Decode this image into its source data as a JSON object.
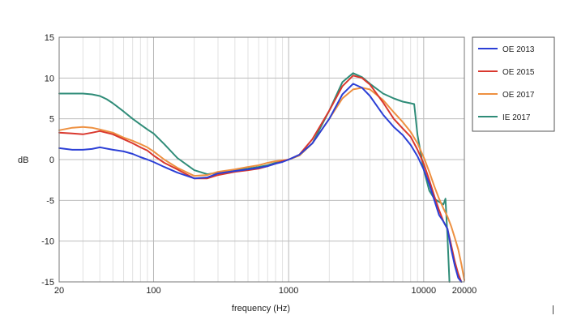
{
  "chart_data": {
    "type": "line",
    "title": "",
    "xlabel": "frequency (Hz)",
    "ylabel": "dB",
    "x_scale": "log",
    "xlim": [
      20,
      20000
    ],
    "ylim": [
      -15,
      15
    ],
    "x_ticks": [
      20,
      100,
      1000,
      10000,
      20000
    ],
    "x_tick_labels": [
      "20",
      "100",
      "1000",
      "10000",
      "20000"
    ],
    "y_ticks": [
      15,
      10,
      5,
      0,
      -5,
      -10,
      -15
    ],
    "y_tick_labels": [
      "15",
      "10",
      "5",
      "0",
      "-5",
      "-10",
      "-15"
    ],
    "grid": true,
    "legend_position": "top-right",
    "colors": {
      "OE 2013": "#2b3fd6",
      "OE 2015": "#d9382e",
      "OE 2017": "#ee9040",
      "IE 2017": "#2f8c78"
    },
    "series": [
      {
        "name": "OE 2013",
        "x": [
          20,
          25,
          30,
          35,
          40,
          50,
          60,
          70,
          80,
          90,
          100,
          120,
          150,
          200,
          250,
          300,
          400,
          500,
          600,
          700,
          800,
          900,
          1000,
          1200,
          1500,
          2000,
          2500,
          3000,
          3500,
          4000,
          5000,
          6000,
          7000,
          8000,
          9000,
          10000,
          11000,
          12000,
          13000,
          14000,
          15000,
          16000,
          17000,
          18000,
          19000
        ],
        "y": [
          1.4,
          1.2,
          1.2,
          1.3,
          1.5,
          1.2,
          1.0,
          0.7,
          0.3,
          0,
          -0.3,
          -0.9,
          -1.6,
          -2.3,
          -2.2,
          -1.7,
          -1.4,
          -1.2,
          -1.0,
          -0.8,
          -0.5,
          -0.3,
          0,
          0.6,
          2.0,
          5.0,
          8.0,
          9.3,
          8.8,
          7.8,
          5.5,
          4.0,
          3.0,
          1.8,
          0.4,
          -1.2,
          -3.0,
          -5.0,
          -6.8,
          -7.6,
          -8.5,
          -11.0,
          -13.0,
          -14.5,
          -15.0
        ]
      },
      {
        "name": "OE 2015",
        "x": [
          20,
          25,
          30,
          35,
          40,
          50,
          60,
          70,
          80,
          90,
          100,
          120,
          150,
          200,
          250,
          300,
          400,
          500,
          600,
          700,
          800,
          900,
          1000,
          1200,
          1500,
          2000,
          2500,
          3000,
          3500,
          4000,
          5000,
          6000,
          7000,
          8000,
          9000,
          10000,
          11000,
          12000,
          13000,
          14000,
          15000,
          16000,
          17000,
          18000,
          19000
        ],
        "y": [
          3.3,
          3.2,
          3.1,
          3.3,
          3.5,
          3.1,
          2.5,
          2.0,
          1.5,
          1.1,
          0.5,
          -0.4,
          -1.2,
          -2.3,
          -2.3,
          -1.9,
          -1.5,
          -1.3,
          -1.1,
          -0.8,
          -0.5,
          -0.2,
          0,
          0.6,
          2.5,
          6.0,
          9.0,
          10.3,
          10.0,
          9.2,
          7.0,
          5.0,
          3.8,
          2.8,
          1.2,
          -0.5,
          -2.5,
          -4.5,
          -6.2,
          -7.6,
          -8.5,
          -10.5,
          -12.5,
          -14.0,
          -15.0
        ]
      },
      {
        "name": "OE 2017",
        "x": [
          20,
          25,
          30,
          35,
          40,
          50,
          60,
          70,
          80,
          90,
          100,
          120,
          150,
          200,
          250,
          300,
          400,
          500,
          600,
          700,
          800,
          900,
          1000,
          1200,
          1500,
          2000,
          2500,
          3000,
          3500,
          4000,
          5000,
          6000,
          7000,
          8000,
          9000,
          10000,
          11000,
          12000,
          13000,
          14000,
          15000,
          16000,
          17000,
          18000,
          19000,
          20000
        ],
        "y": [
          3.6,
          3.9,
          4.0,
          3.9,
          3.7,
          3.3,
          2.7,
          2.3,
          1.9,
          1.5,
          1.0,
          0,
          -1.0,
          -2.0,
          -1.9,
          -1.5,
          -1.2,
          -0.9,
          -0.7,
          -0.4,
          -0.2,
          -0.1,
          0,
          0.5,
          2.0,
          5.0,
          7.5,
          8.6,
          8.8,
          8.6,
          7.3,
          5.8,
          4.6,
          3.4,
          2.0,
          0.3,
          -1.5,
          -3.3,
          -4.8,
          -6.0,
          -7.0,
          -8.2,
          -9.6,
          -11.0,
          -12.8,
          -14.8
        ]
      },
      {
        "name": "IE 2017",
        "x": [
          20,
          25,
          30,
          35,
          40,
          45,
          50,
          60,
          70,
          80,
          90,
          100,
          120,
          150,
          200,
          250,
          300,
          400,
          500,
          600,
          700,
          800,
          900,
          1000,
          1200,
          1500,
          2000,
          2500,
          3000,
          3500,
          4000,
          5000,
          6000,
          7000,
          8000,
          8500,
          9000,
          10000,
          11000,
          12000,
          13000,
          14000,
          14500,
          15000,
          15500
        ],
        "y": [
          8.1,
          8.1,
          8.1,
          8.0,
          7.8,
          7.4,
          6.9,
          5.9,
          5.0,
          4.3,
          3.7,
          3.2,
          1.9,
          0.2,
          -1.3,
          -1.8,
          -1.6,
          -1.3,
          -1.1,
          -0.9,
          -0.7,
          -0.4,
          -0.2,
          0,
          0.5,
          2.0,
          6.0,
          9.5,
          10.6,
          10.1,
          9.3,
          8.1,
          7.5,
          7.1,
          6.9,
          6.8,
          3.0,
          -1.2,
          -3.8,
          -4.8,
          -5.2,
          -5.5,
          -4.8,
          -9.5,
          -15.0
        ]
      }
    ]
  }
}
